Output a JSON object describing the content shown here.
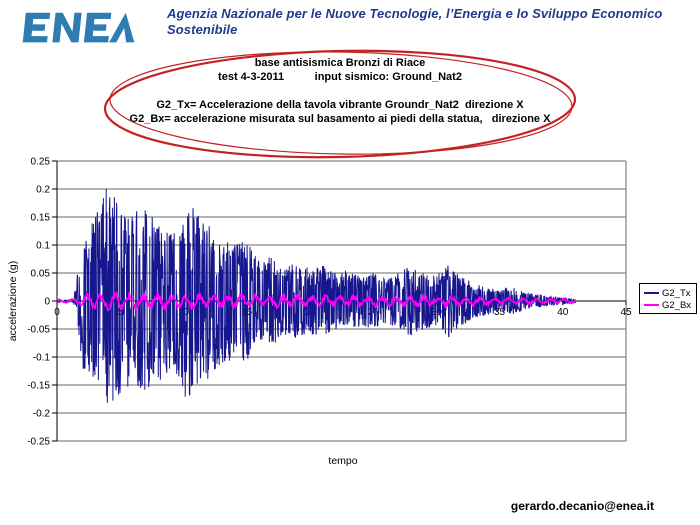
{
  "header": {
    "logo": {
      "name": "ENEA",
      "color": "#2e7cb2"
    },
    "agency_line1": "Agenzia Nazionale per le Nuove Tecnologie, l’Energia e lo Sviluppo Economico",
    "agency_line2": "Sostenibile",
    "text_color": "#203a8e"
  },
  "annotation": {
    "line1": "base antisismica Bronzi di Riace",
    "line2": "test 4-3-2011          input sismico: Ground_Nat2",
    "line3": "G2_Tx= Accelerazione della tavola vibrante Groundr_Nat2  direzione X",
    "line4": "G2_Bx= accelerazione misurata sul basamento ai piedi della statua,   direzione X",
    "ellipse_color": "#c32222"
  },
  "footer": {
    "email": "gerardo.decanio@enea.it"
  },
  "chart_data": {
    "type": "line",
    "title": "",
    "xlabel": "tempo",
    "ylabel": "accelerazione (g)",
    "xlim": [
      0,
      45
    ],
    "ylim": [
      -0.25,
      0.25
    ],
    "x_tick_values": [
      0,
      5,
      10,
      15,
      20,
      25,
      30,
      35,
      40,
      45
    ],
    "x_tick_labels": [
      "0",
      "5",
      "10",
      "15",
      "20",
      "25",
      "30",
      "35",
      "40",
      "45"
    ],
    "y_tick_values": [
      0.25,
      0.2,
      0.15,
      0.1,
      0.05,
      0,
      -0.05,
      -0.1,
      -0.15,
      -0.2,
      -0.25
    ],
    "y_tick_labels": [
      "0.25",
      "0.2",
      "0.15",
      "0.1",
      "0.05",
      "0",
      "-0.05",
      "-0.1",
      "-0.15",
      "-0.2",
      "-0.25"
    ],
    "grid": "horizontal",
    "legend_position": "right",
    "signal_start_s": 1.4,
    "signal_end_s": 41,
    "series": [
      {
        "name": "G2_Tx",
        "color": "#16168e",
        "peak_g": 0.21,
        "envelope_t": [
          0,
          1.3,
          1.6,
          2.0,
          2.6,
          3.2,
          4.0,
          4.6,
          5.2,
          6.0,
          6.6,
          7.2,
          8.0,
          9.0,
          9.6,
          10.4,
          11.0,
          11.6,
          12.2,
          13.0,
          14.0,
          15.0,
          16.0,
          17.0,
          18.0,
          19.0,
          20.0,
          21.0,
          22.0,
          23.0,
          24.0,
          25.0,
          26.0,
          27.0,
          28.0,
          29.0,
          30.0,
          31.0,
          31.6,
          32.4,
          33.0,
          34.0,
          35.0,
          36.0,
          37.0,
          38.0,
          39.0,
          40.0,
          41.0
        ],
        "envelope_g": [
          0.002,
          0.003,
          0.05,
          0.12,
          0.14,
          0.16,
          0.21,
          0.19,
          0.16,
          0.15,
          0.18,
          0.16,
          0.15,
          0.12,
          0.14,
          0.19,
          0.15,
          0.16,
          0.13,
          0.12,
          0.1,
          0.11,
          0.07,
          0.08,
          0.06,
          0.07,
          0.06,
          0.065,
          0.05,
          0.055,
          0.045,
          0.05,
          0.04,
          0.05,
          0.065,
          0.05,
          0.045,
          0.065,
          0.05,
          0.04,
          0.03,
          0.025,
          0.02,
          0.025,
          0.015,
          0.012,
          0.008,
          0.006,
          0.004
        ]
      },
      {
        "name": "G2_Bx",
        "color": "#ff00ff",
        "peak_g": 0.018,
        "envelope_t": [
          0,
          1.4,
          2,
          4,
          8,
          12,
          16,
          20,
          24,
          28,
          31,
          34,
          37,
          40,
          41
        ],
        "envelope_g": [
          0.002,
          0.004,
          0.012,
          0.015,
          0.013,
          0.012,
          0.011,
          0.01,
          0.009,
          0.01,
          0.009,
          0.007,
          0.005,
          0.004,
          0.003
        ]
      }
    ]
  }
}
